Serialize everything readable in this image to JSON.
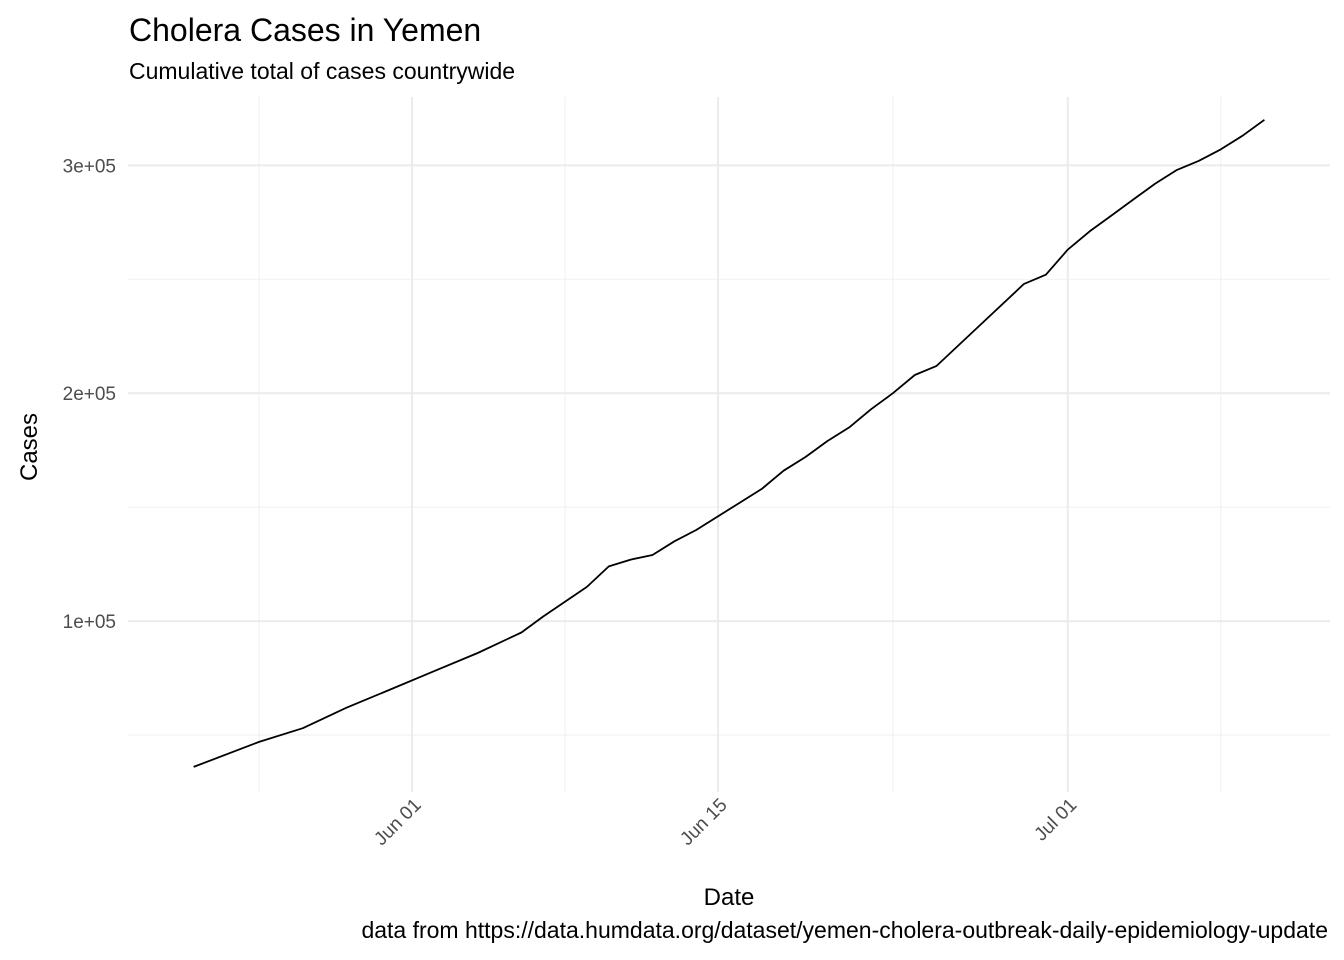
{
  "chart_data": {
    "type": "line",
    "title": "Cholera Cases in Yemen",
    "subtitle": "Cumulative total of cases countrywide",
    "caption": "data from https://data.humdata.org/dataset/yemen-cholera-outbreak-daily-epidemiology-update",
    "xlabel": "Date",
    "ylabel": "Cases",
    "x_type": "date",
    "xlim": [
      "2017-05-19",
      "2017-07-13"
    ],
    "ylim": [
      25000,
      330000
    ],
    "x_ticks": [
      {
        "value": "2017-06-01",
        "label": "Jun 01"
      },
      {
        "value": "2017-06-15",
        "label": "Jun 15"
      },
      {
        "value": "2017-07-01",
        "label": "Jul 01"
      }
    ],
    "x_minor_ticks": [
      "2017-05-25",
      "2017-06-08",
      "2017-06-23",
      "2017-07-08"
    ],
    "y_ticks": [
      {
        "value": 100000,
        "label": "1e+05"
      },
      {
        "value": 200000,
        "label": "2e+05"
      },
      {
        "value": 300000,
        "label": "3e+05"
      }
    ],
    "y_minor_ticks": [
      50000,
      150000,
      250000
    ],
    "grid": true,
    "series": [
      {
        "color": "#000000",
        "x": [
          "2017-05-22",
          "2017-05-25",
          "2017-05-27",
          "2017-05-29",
          "2017-05-31",
          "2017-06-02",
          "2017-06-04",
          "2017-06-06",
          "2017-06-07",
          "2017-06-09",
          "2017-06-10",
          "2017-06-11",
          "2017-06-12",
          "2017-06-13",
          "2017-06-14",
          "2017-06-16",
          "2017-06-17",
          "2017-06-18",
          "2017-06-19",
          "2017-06-20",
          "2017-06-21",
          "2017-06-22",
          "2017-06-23",
          "2017-06-24",
          "2017-06-25",
          "2017-06-27",
          "2017-06-29",
          "2017-06-30",
          "2017-07-01",
          "2017-07-02",
          "2017-07-03",
          "2017-07-04",
          "2017-07-05",
          "2017-07-06",
          "2017-07-07",
          "2017-07-08",
          "2017-07-09",
          "2017-07-10"
        ],
        "values": [
          36000,
          47000,
          53000,
          62000,
          70000,
          78000,
          86000,
          95000,
          102000,
          115000,
          124000,
          127000,
          129000,
          135000,
          140000,
          152000,
          158000,
          166000,
          172000,
          179000,
          185000,
          193000,
          200000,
          208000,
          212000,
          230000,
          248000,
          252000,
          263000,
          271000,
          278000,
          285000,
          292000,
          298000,
          302000,
          307000,
          313000,
          320000
        ]
      }
    ]
  }
}
